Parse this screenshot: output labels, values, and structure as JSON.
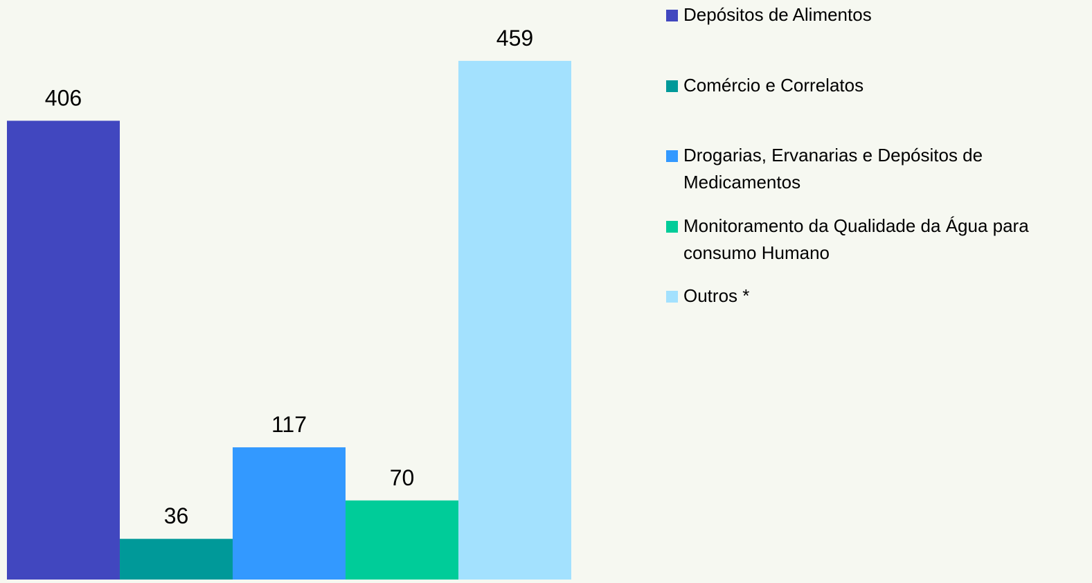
{
  "chart_data": {
    "type": "bar",
    "ylim": [
      0,
      500
    ],
    "series": [
      {
        "name": "Depósitos de Alimentos",
        "color": "#4147bf",
        "values": [
          406
        ]
      },
      {
        "name": "Comércio e Correlatos",
        "color": "#009999",
        "values": [
          36
        ]
      },
      {
        "name": "Drogarias, Ervanarias e Depósitos de Medicamentos",
        "color": "#3399ff",
        "values": [
          117
        ]
      },
      {
        "name": "Monitoramento da Qualidade da Água para consumo Humano",
        "color": "#00cc99",
        "values": [
          70
        ]
      },
      {
        "name": "Outros *",
        "color": "#a3e1fe",
        "values": [
          459
        ]
      }
    ]
  }
}
